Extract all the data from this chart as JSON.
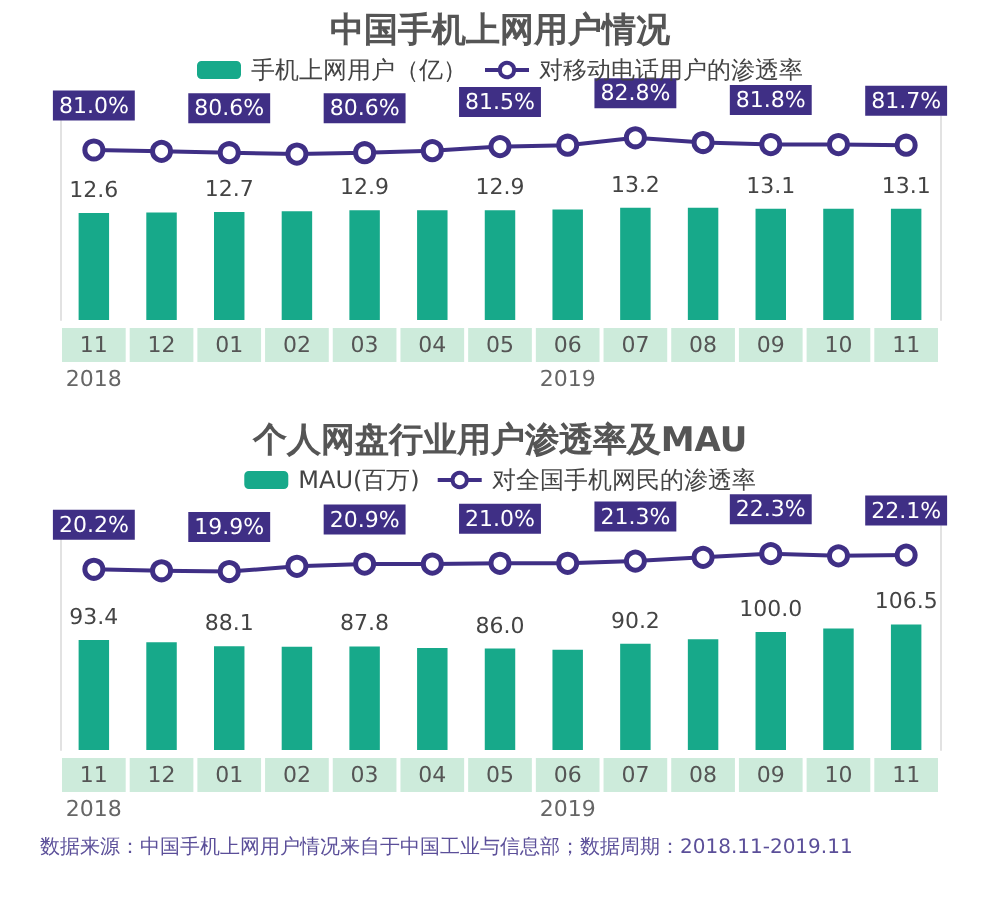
{
  "chart_data": [
    {
      "type": "bar",
      "title": "中国手机上网用户情况",
      "categories": [
        "11",
        "12",
        "01",
        "02",
        "03",
        "04",
        "05",
        "06",
        "07",
        "08",
        "09",
        "10",
        "11"
      ],
      "legend": "top",
      "marker": "circle",
      "ylim": [
        0,
        24
      ],
      "y2lim": [
        56,
        86
      ],
      "annotations": [
        "2018",
        "2019"
      ],
      "series": [
        {
          "name": "手机上网用户（亿）",
          "color": "#17a98a",
          "values": [
            12.6,
            12.65,
            12.7,
            12.8,
            12.9,
            12.9,
            12.9,
            13.0,
            13.2,
            13.2,
            13.1,
            13.1,
            13.1
          ],
          "value_labels": [
            "12.6",
            null,
            "12.7",
            null,
            "12.9",
            null,
            "12.9",
            null,
            "13.2",
            null,
            "13.1",
            null,
            "13.1"
          ]
        },
        {
          "name": "对移动电话用户的渗透率",
          "type": "line",
          "axis": "y2",
          "color": "#3f2f85",
          "values": [
            81.0,
            80.8,
            80.6,
            80.4,
            80.6,
            80.9,
            81.5,
            81.7,
            82.8,
            82.1,
            81.8,
            81.8,
            81.7
          ],
          "value_labels": [
            "81.0%",
            null,
            "80.6%",
            null,
            "80.6%",
            null,
            "81.5%",
            null,
            "82.8%",
            null,
            "81.8%",
            null,
            "81.7%"
          ]
        }
      ]
    },
    {
      "type": "bar",
      "title": "个人网盘行业用户渗透率及MAU",
      "categories": [
        "11",
        "12",
        "01",
        "02",
        "03",
        "04",
        "05",
        "06",
        "07",
        "08",
        "09",
        "10",
        "11"
      ],
      "legend": "top",
      "marker": "circle",
      "ylim": [
        0,
        190
      ],
      "y2lim": [
        -4,
        26
      ],
      "annotations": [
        "2018",
        "2019",
        "数据来源：中国手机上网用户情况来自于中国工业与信息部；数据周期：2018.11-2019.11"
      ],
      "series": [
        {
          "name": "MAU(百万)",
          "color": "#17a98a",
          "values": [
            93.4,
            91.5,
            88.1,
            87.5,
            87.8,
            86.5,
            86.0,
            85.0,
            90.2,
            94.0,
            100.0,
            103.0,
            106.5
          ],
          "value_labels": [
            "93.4",
            null,
            "88.1",
            null,
            "87.8",
            null,
            "86.0",
            null,
            "90.2",
            null,
            "100.0",
            null,
            "106.5"
          ]
        },
        {
          "name": "对全国手机网民的渗透率",
          "type": "line",
          "axis": "y2",
          "color": "#3f2f85",
          "values": [
            20.2,
            20.0,
            19.9,
            20.6,
            20.9,
            20.9,
            21.0,
            21.0,
            21.3,
            21.8,
            22.3,
            22.0,
            22.1
          ],
          "value_labels": [
            "20.2%",
            null,
            "19.9%",
            null,
            "20.9%",
            null,
            "21.0%",
            null,
            "21.3%",
            null,
            "22.3%",
            null,
            "22.1%"
          ]
        }
      ]
    }
  ]
}
